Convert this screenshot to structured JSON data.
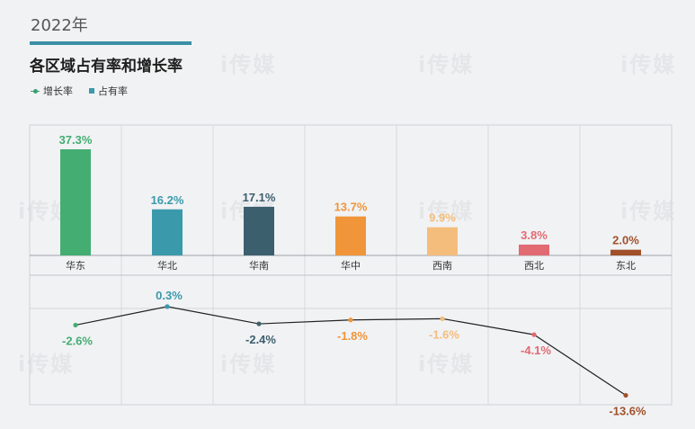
{
  "header": {
    "year": "2022年",
    "title": "各区域占有率和增长率"
  },
  "legend": {
    "growth_label": "增长率",
    "share_label": "占有率"
  },
  "watermark": "i传媒",
  "chart_data": {
    "type": "bar",
    "categories": [
      "华东",
      "华北",
      "华南",
      "华中",
      "西南",
      "西北",
      "东北"
    ],
    "series": [
      {
        "name": "占有率",
        "type": "bar",
        "values": [
          37.3,
          16.2,
          17.1,
          13.7,
          9.9,
          3.8,
          2.0
        ],
        "labels": [
          "37.3%",
          "16.2%",
          "17.1%",
          "13.7%",
          "9.9%",
          "3.8%",
          "2.0%"
        ]
      },
      {
        "name": "增长率",
        "type": "line",
        "values": [
          -2.6,
          0.3,
          -2.4,
          -1.8,
          -1.6,
          -4.1,
          -13.6
        ],
        "labels": [
          "-2.6%",
          "0.3%",
          "-2.4%",
          "-1.8%",
          "-1.6%",
          "-4.1%",
          "-13.6%"
        ]
      }
    ],
    "colors": [
      "#43ad72",
      "#3a9aab",
      "#3c5f6e",
      "#f0953a",
      "#f4bd7c",
      "#e26a72",
      "#a0502a"
    ],
    "grid": true
  }
}
